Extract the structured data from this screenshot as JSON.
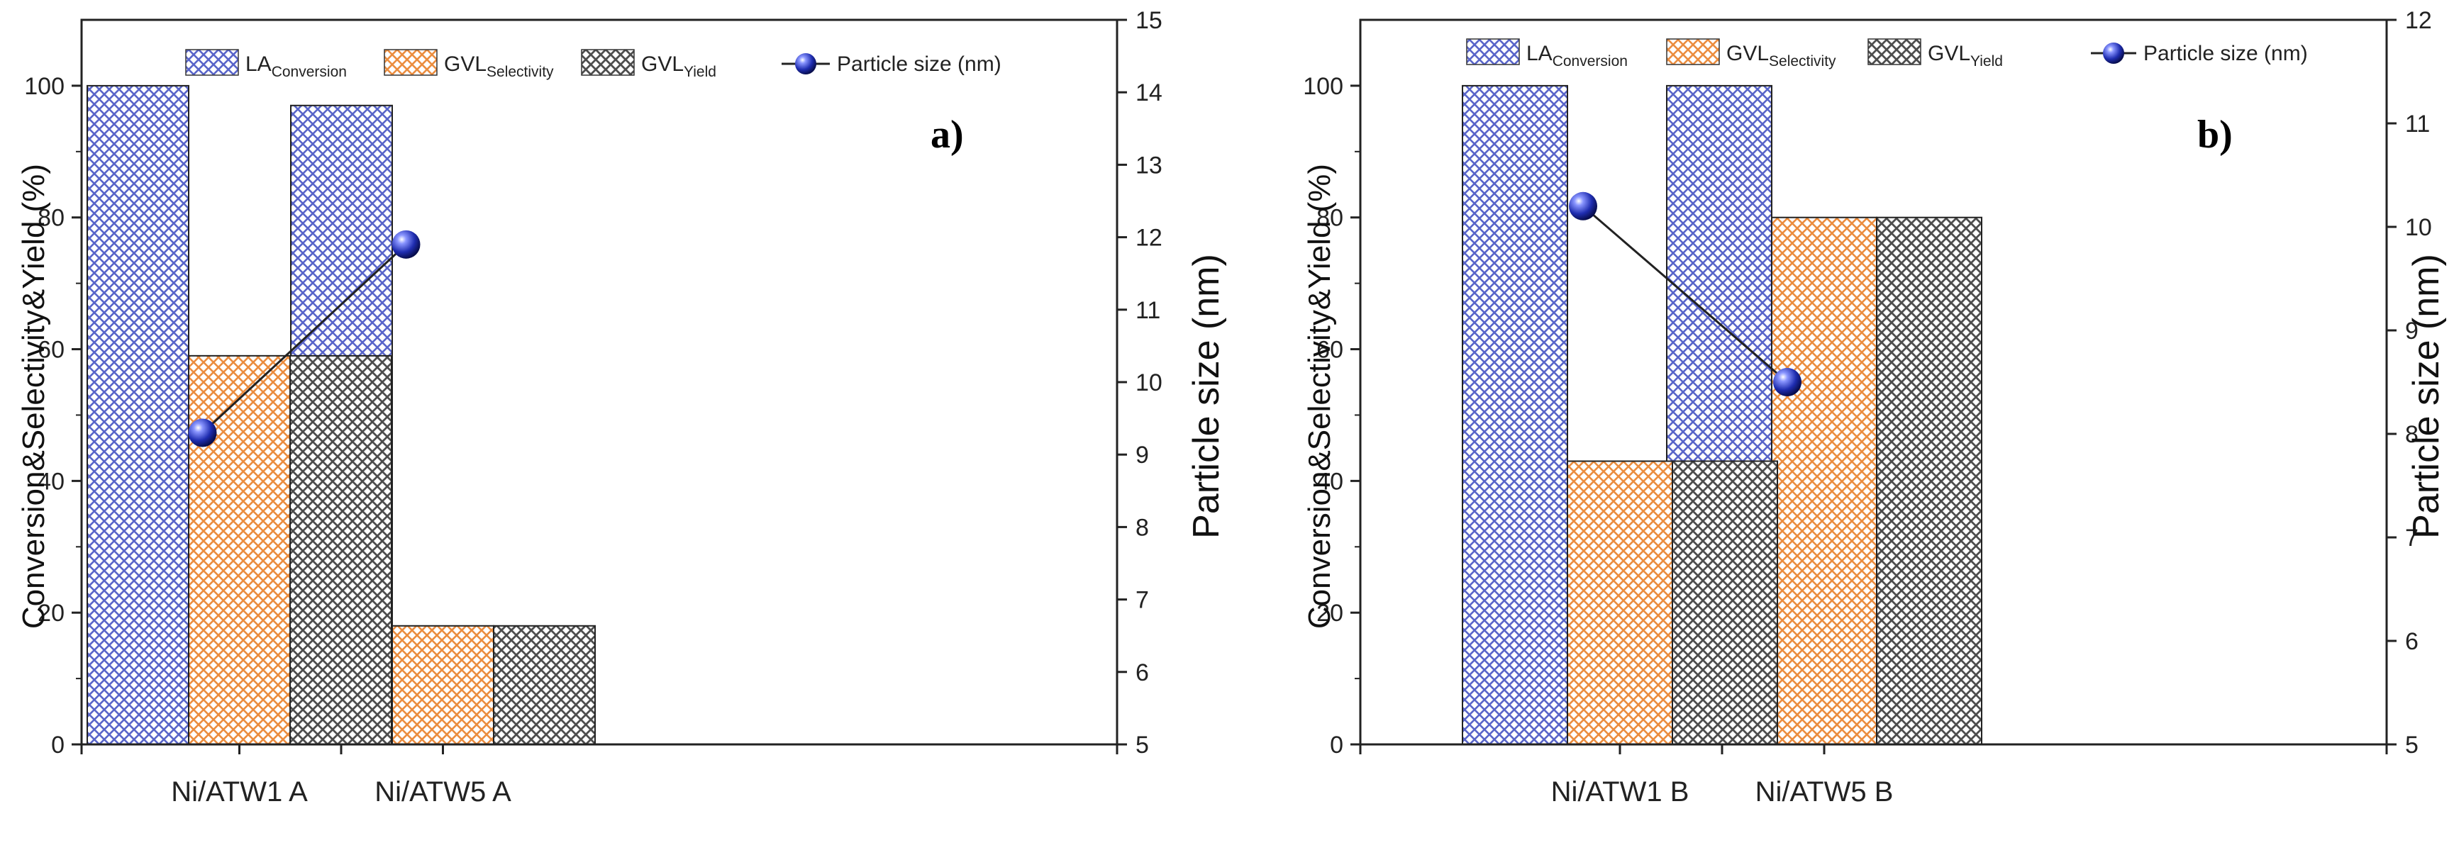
{
  "colors": {
    "la": "#5965c9",
    "gvl_sel": "#eb8d3f",
    "gvl_yield": "#4d4d4d",
    "marker": "#1f2db0",
    "line": "#222222"
  },
  "legend": {
    "la": {
      "main": "LA",
      "sub": "Conversion"
    },
    "gvl_sel": {
      "main": "GVL",
      "sub": "Selectivity"
    },
    "gvl_yield": {
      "main": "GVL",
      "sub": "Yield"
    },
    "particle": "Particle size (nm)"
  },
  "chart_data": [
    {
      "panel": "a)",
      "type": "bar",
      "categories": [
        "Ni/ATW1 A",
        "Ni/ATW5 A"
      ],
      "series": [
        {
          "name": "LA Conversion",
          "key": "la",
          "values": [
            100,
            97
          ]
        },
        {
          "name": "GVL Selectivity",
          "key": "gvl_sel",
          "values": [
            59,
            18
          ]
        },
        {
          "name": "GVL Yield",
          "key": "gvl_yield",
          "values": [
            59,
            18
          ]
        }
      ],
      "line_series": {
        "name": "Particle size (nm)",
        "values": [
          9.3,
          11.9
        ],
        "axis": "right"
      },
      "ylabel": "Conversion&Selectivity&Yield (%)",
      "y2label": "Particle size (nm)",
      "ylim": [
        0,
        110
      ],
      "yticks": [
        0,
        20,
        40,
        60,
        80,
        100
      ],
      "y2lim": [
        5,
        15
      ],
      "y2ticks": [
        5,
        6,
        7,
        8,
        9,
        10,
        11,
        12,
        13,
        14,
        15
      ]
    },
    {
      "panel": "b)",
      "type": "bar",
      "categories": [
        "Ni/ATW1 B",
        "Ni/ATW5 B"
      ],
      "series": [
        {
          "name": "LA Conversion",
          "key": "la",
          "values": [
            100,
            100
          ]
        },
        {
          "name": "GVL Selectivity",
          "key": "gvl_sel",
          "values": [
            43,
            80
          ]
        },
        {
          "name": "GVL Yield",
          "key": "gvl_yield",
          "values": [
            43,
            80
          ]
        }
      ],
      "line_series": {
        "name": "Particle size (nm)",
        "values": [
          10.2,
          8.5
        ],
        "axis": "right"
      },
      "ylabel": "Conversion&Selectivity&Yield (%)",
      "y2label": "Particle size (nm)",
      "ylim": [
        0,
        110
      ],
      "yticks": [
        0,
        20,
        40,
        60,
        80,
        100
      ],
      "y2lim": [
        5,
        12
      ],
      "y2ticks": [
        5,
        6,
        7,
        8,
        9,
        10,
        11,
        12
      ]
    }
  ]
}
